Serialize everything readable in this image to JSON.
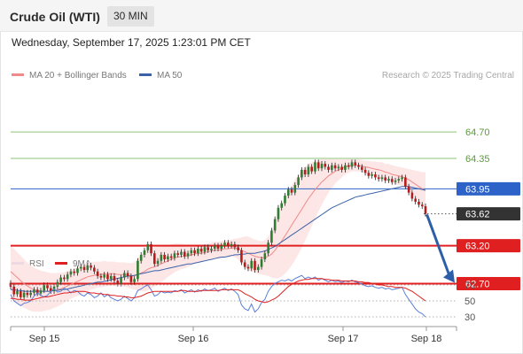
{
  "header": {
    "instrument": "Crude Oil (WTI)",
    "timeframe": "30 MIN",
    "datetime": "Wednesday, September 17, 2025 1:23:01 PM CET"
  },
  "legend": {
    "ma20_label": "MA 20 + Bollinger Bands",
    "ma50_label": "MA 50",
    "credit": "Research © 2025 Trading Central",
    "rsi_label": "RSI",
    "rsi_ma_label": "9MA"
  },
  "colors": {
    "bullish_candle": "#2e7d32",
    "bearish_candle": "#b71c1c",
    "ma20": "#f08a8a",
    "bollinger_fill": "#fde3e3",
    "ma50": "#3b62a8",
    "support": "#e02020",
    "resistance": "#8fc37a",
    "pivot": "#2d63c8",
    "last_price": "#333333",
    "rsi": "#5b7fd6",
    "rsi_ma": "#e02020",
    "arrow": "#2d5fa8"
  },
  "chart_data": [
    {
      "type": "candlestick",
      "title": "",
      "x_labels": [
        "Sep 15",
        "Sep 16",
        "Sep 17",
        "Sep 18"
      ],
      "ylim": [
        62.0,
        65.0
      ],
      "levels": [
        {
          "value": 64.7,
          "label": "64.70",
          "kind": "resistance"
        },
        {
          "value": 64.35,
          "label": "64.35",
          "kind": "resistance"
        },
        {
          "value": 63.95,
          "label": "63.95",
          "kind": "pivot"
        },
        {
          "value": 63.62,
          "label": "63.62",
          "kind": "last"
        },
        {
          "value": 63.2,
          "label": "63.20",
          "kind": "support"
        },
        {
          "value": 62.7,
          "label": "62.70",
          "kind": "support"
        }
      ],
      "close": [
        62.66,
        62.56,
        62.6,
        62.52,
        62.58,
        62.55,
        62.58,
        62.62,
        62.57,
        62.61,
        62.68,
        62.64,
        62.6,
        62.66,
        62.72,
        62.78,
        62.76,
        62.82,
        62.86,
        62.84,
        62.9,
        62.92,
        62.88,
        62.94,
        62.91,
        62.86,
        62.8,
        62.78,
        62.82,
        62.76,
        62.8,
        62.74,
        62.7,
        62.78,
        62.84,
        62.8,
        62.72,
        62.76,
        63.0,
        63.08,
        63.14,
        63.22,
        63.1,
        62.96,
        63.0,
        63.08,
        63.02,
        63.06,
        63.04,
        63.1,
        63.08,
        63.12,
        63.06,
        63.1,
        63.14,
        63.1,
        63.16,
        63.12,
        63.18,
        63.14,
        63.16,
        63.2,
        63.16,
        63.2,
        63.24,
        63.2,
        63.22,
        63.18,
        63.14,
        62.98,
        62.92,
        62.9,
        63.0,
        62.88,
        62.92,
        63.02,
        63.1,
        63.24,
        63.4,
        63.55,
        63.7,
        63.76,
        63.86,
        63.94,
        63.9,
        64.0,
        64.1,
        64.2,
        64.14,
        64.24,
        64.18,
        64.3,
        64.22,
        64.28,
        64.24,
        64.2,
        64.26,
        64.22,
        64.24,
        64.2,
        64.26,
        64.24,
        64.3,
        64.26,
        64.24,
        64.2,
        64.16,
        64.12,
        64.14,
        64.1,
        64.08,
        64.1,
        64.06,
        64.08,
        64.04,
        64.06,
        64.08,
        64.1,
        63.98,
        63.9,
        63.82,
        63.78,
        63.74,
        63.72,
        63.62
      ],
      "ma20": [
        62.86,
        62.82,
        62.78,
        62.74,
        62.7,
        62.67,
        62.64,
        62.62,
        62.61,
        62.6,
        62.6,
        62.6,
        62.6,
        62.61,
        62.62,
        62.63,
        62.65,
        62.67,
        62.69,
        62.71,
        62.73,
        62.75,
        62.77,
        62.79,
        62.8,
        62.81,
        62.82,
        62.82,
        62.83,
        62.83,
        62.83,
        62.83,
        62.82,
        62.82,
        62.82,
        62.81,
        62.8,
        62.8,
        62.82,
        62.84,
        62.86,
        62.89,
        62.91,
        62.92,
        62.94,
        62.96,
        62.98,
        63.0,
        63.02,
        63.04,
        63.05,
        63.06,
        63.06,
        63.07,
        63.08,
        63.09,
        63.1,
        63.1,
        63.11,
        63.12,
        63.13,
        63.14,
        63.14,
        63.15,
        63.16,
        63.16,
        63.17,
        63.17,
        63.16,
        63.14,
        63.12,
        63.1,
        63.08,
        63.06,
        63.05,
        63.04,
        63.04,
        63.06,
        63.09,
        63.14,
        63.2,
        63.26,
        63.33,
        63.4,
        63.47,
        63.54,
        63.61,
        63.68,
        63.75,
        63.82,
        63.88,
        63.94,
        63.99,
        64.04,
        64.08,
        64.12,
        64.15,
        64.18,
        64.2,
        64.22,
        64.24,
        64.25,
        64.26,
        64.26,
        64.26,
        64.25,
        64.24,
        64.23,
        64.22,
        64.21,
        64.2,
        64.19,
        64.17,
        64.16,
        64.14,
        64.13,
        64.12,
        64.11,
        64.09,
        64.07,
        64.04,
        64.01,
        63.98,
        63.95,
        63.93
      ],
      "ma50": [
        62.62,
        62.62,
        62.61,
        62.61,
        62.6,
        62.6,
        62.6,
        62.6,
        62.6,
        62.6,
        62.6,
        62.6,
        62.6,
        62.61,
        62.61,
        62.62,
        62.62,
        62.63,
        62.64,
        62.65,
        62.66,
        62.67,
        62.68,
        62.69,
        62.7,
        62.71,
        62.72,
        62.72,
        62.73,
        62.74,
        62.75,
        62.76,
        62.77,
        62.78,
        62.79,
        62.8,
        62.8,
        62.81,
        62.82,
        62.83,
        62.84,
        62.85,
        62.86,
        62.87,
        62.87,
        62.88,
        62.89,
        62.9,
        62.91,
        62.92,
        62.93,
        62.94,
        62.95,
        62.96,
        62.96,
        62.97,
        62.98,
        62.99,
        63.0,
        63.01,
        63.02,
        63.03,
        63.04,
        63.05,
        63.05,
        63.06,
        63.07,
        63.08,
        63.08,
        63.09,
        63.09,
        63.1,
        63.1,
        63.1,
        63.11,
        63.12,
        63.13,
        63.15,
        63.17,
        63.19,
        63.22,
        63.25,
        63.28,
        63.31,
        63.34,
        63.37,
        63.4,
        63.43,
        63.46,
        63.49,
        63.52,
        63.55,
        63.58,
        63.61,
        63.64,
        63.67,
        63.7,
        63.72,
        63.74,
        63.76,
        63.78,
        63.8,
        63.82,
        63.84,
        63.85,
        63.86,
        63.87,
        63.88,
        63.89,
        63.9,
        63.91,
        63.92,
        63.93,
        63.94,
        63.95,
        63.96,
        63.97,
        63.98,
        63.98,
        63.98,
        63.97,
        63.96,
        63.95,
        63.94,
        63.93
      ],
      "band_width": [
        0.34,
        0.34,
        0.33,
        0.33,
        0.32,
        0.31,
        0.3,
        0.29,
        0.28,
        0.27,
        0.26,
        0.25,
        0.24,
        0.23,
        0.22,
        0.21,
        0.2,
        0.2,
        0.19,
        0.19,
        0.19,
        0.19,
        0.19,
        0.19,
        0.18,
        0.18,
        0.17,
        0.17,
        0.17,
        0.16,
        0.16,
        0.16,
        0.16,
        0.16,
        0.16,
        0.16,
        0.17,
        0.18,
        0.21,
        0.24,
        0.26,
        0.28,
        0.27,
        0.26,
        0.25,
        0.24,
        0.23,
        0.21,
        0.2,
        0.19,
        0.18,
        0.17,
        0.16,
        0.15,
        0.14,
        0.13,
        0.12,
        0.12,
        0.11,
        0.11,
        0.11,
        0.11,
        0.11,
        0.11,
        0.11,
        0.11,
        0.11,
        0.12,
        0.14,
        0.17,
        0.2,
        0.22,
        0.22,
        0.22,
        0.22,
        0.22,
        0.23,
        0.26,
        0.31,
        0.37,
        0.43,
        0.47,
        0.5,
        0.52,
        0.53,
        0.53,
        0.52,
        0.51,
        0.49,
        0.46,
        0.42,
        0.38,
        0.34,
        0.3,
        0.26,
        0.22,
        0.19,
        0.16,
        0.14,
        0.12,
        0.1,
        0.09,
        0.08,
        0.08,
        0.08,
        0.08,
        0.08,
        0.09,
        0.09,
        0.1,
        0.1,
        0.11,
        0.11,
        0.12,
        0.12,
        0.12,
        0.12,
        0.12,
        0.13,
        0.14,
        0.16,
        0.18,
        0.2,
        0.22,
        0.24
      ],
      "forecast_target": 62.7
    },
    {
      "type": "line",
      "title": "",
      "ylim": [
        20,
        80
      ],
      "y_ticks": [
        70,
        50,
        30
      ],
      "y_tick_labels": [
        "70",
        "50",
        "30"
      ],
      "rsi": [
        58,
        50,
        47,
        44,
        47,
        48,
        50,
        56,
        60,
        57,
        55,
        57,
        62,
        65,
        61,
        62,
        66,
        64,
        60,
        63,
        62,
        58,
        56,
        60,
        58,
        54,
        56,
        60,
        55,
        58,
        54,
        52,
        50,
        52,
        56,
        53,
        50,
        54,
        63,
        65,
        68,
        70,
        64,
        56,
        58,
        62,
        60,
        61,
        60,
        63,
        62,
        64,
        60,
        62,
        64,
        61,
        64,
        62,
        65,
        63,
        64,
        66,
        62,
        64,
        66,
        63,
        65,
        62,
        58,
        45,
        40,
        38,
        46,
        36,
        40,
        48,
        52,
        62,
        68,
        72,
        74,
        76,
        75,
        77,
        75,
        78,
        80,
        82,
        78,
        80,
        78,
        80,
        76,
        78,
        76,
        74,
        76,
        74,
        75,
        73,
        75,
        74,
        76,
        74,
        73,
        71,
        69,
        68,
        69,
        67,
        66,
        67,
        65,
        66,
        64,
        65,
        66,
        67,
        58,
        52,
        46,
        40,
        36,
        34,
        30
      ],
      "rsi_ma": [
        53,
        53,
        52,
        52,
        51,
        51,
        51,
        52,
        53,
        54,
        55,
        55,
        56,
        57,
        58,
        59,
        60,
        60,
        61,
        61,
        62,
        62,
        62,
        61,
        60,
        60,
        59,
        59,
        58,
        58,
        57,
        57,
        56,
        56,
        55,
        55,
        54,
        54,
        55,
        56,
        58,
        60,
        61,
        62,
        62,
        62,
        62,
        62,
        62,
        62,
        62,
        63,
        63,
        62,
        62,
        62,
        62,
        63,
        63,
        63,
        63,
        63,
        63,
        64,
        64,
        64,
        64,
        64,
        64,
        62,
        59,
        57,
        55,
        52,
        50,
        49,
        48,
        49,
        51,
        53,
        56,
        60,
        64,
        68,
        71,
        73,
        75,
        76,
        77,
        77,
        78,
        78,
        78,
        78,
        77,
        77,
        76,
        76,
        76,
        75,
        75,
        75,
        75,
        75,
        74,
        74,
        73,
        73,
        72,
        71,
        70,
        70,
        69,
        68,
        68,
        67,
        67,
        67,
        66,
        64,
        62,
        59,
        56,
        53,
        50
      ]
    }
  ]
}
